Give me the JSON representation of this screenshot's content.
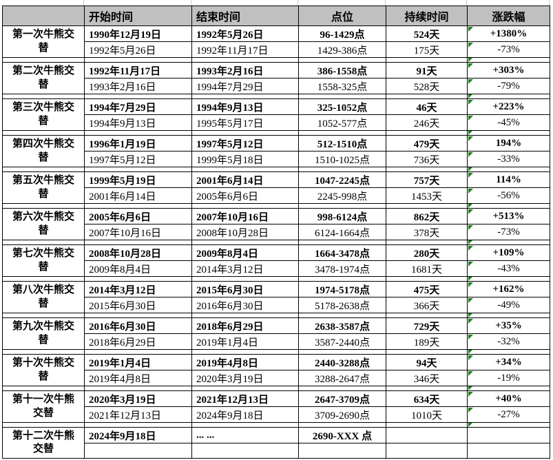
{
  "table": {
    "columns": [
      {
        "key": "label",
        "label": ""
      },
      {
        "key": "start",
        "label": "开始时间"
      },
      {
        "key": "end",
        "label": "结束时间"
      },
      {
        "key": "points",
        "label": "点位"
      },
      {
        "key": "duration",
        "label": "持续时间"
      },
      {
        "key": "change",
        "label": "涨跌幅"
      }
    ],
    "groups": [
      {
        "label": "第一次牛熊交替",
        "bull": {
          "start": "1990年12月19日",
          "end": "1992年5月26日",
          "points": "96-1429点",
          "duration": "524天",
          "change": "+1380%"
        },
        "bear": {
          "start": "1992年5月26日",
          "end": "1992年11月17日",
          "points": "1429-386点",
          "duration": "175天",
          "change": "-73%"
        }
      },
      {
        "label": "第二次牛熊交替",
        "bull": {
          "start": "1992年11月17日",
          "end": "1993年2月16日",
          "points": "386-1558点",
          "duration": "91天",
          "change": "+303%"
        },
        "bear": {
          "start": "1993年2月16日",
          "end": "1994年7月29日",
          "points": "1558-325点",
          "duration": "528天",
          "change": "-79%"
        }
      },
      {
        "label": "第三次牛熊交替",
        "bull": {
          "start": "1994年7月29日",
          "end": "1994年9月13日",
          "points": "325-1052点",
          "duration": "46天",
          "change": "+223%"
        },
        "bear": {
          "start": "1994年9月13日",
          "end": "1995年5月17日",
          "points": "1052-577点",
          "duration": "246天",
          "change": "-45%"
        }
      },
      {
        "label": "第四次牛熊交替",
        "bull": {
          "start": "1996年1月19日",
          "end": "1997年5月12日",
          "points": "512-1510点",
          "duration": "479天",
          "change": "194%"
        },
        "bear": {
          "start": "1997年5月12日",
          "end": "1999年5月18日",
          "points": "1510-1025点",
          "duration": "736天",
          "change": "-33%"
        }
      },
      {
        "label": "第五次牛熊交替",
        "bull": {
          "start": "1999年5月19日",
          "end": "2001年6月14日",
          "points": "1047-2245点",
          "duration": "757天",
          "change": "114%"
        },
        "bear": {
          "start": "2001年6月14日",
          "end": "2005年6月6日",
          "points": "2245-998点",
          "duration": "1453天",
          "change": "-56%"
        }
      },
      {
        "label": "第六次牛熊交替",
        "bull": {
          "start": "2005年6月6日",
          "end": "2007年10月16日",
          "points": "998-6124点",
          "duration": "862天",
          "change": "+513%"
        },
        "bear": {
          "start": "2007年10月16日",
          "end": "2008年10月28日",
          "points": "6124-1664点",
          "duration": "378天",
          "change": "-73%"
        }
      },
      {
        "label": "第七次牛熊交替",
        "bull": {
          "start": "2008年10月28日",
          "end": "2009年8月4日",
          "points": "1664-3478点",
          "duration": "280天",
          "change": "+109%"
        },
        "bear": {
          "start": "2009年8月4日",
          "end": "2014年3月12日",
          "points": "3478-1974点",
          "duration": "1681天",
          "change": "-43%"
        }
      },
      {
        "label": "第八次牛熊交替",
        "bull": {
          "start": "2014年3月12日",
          "end": "2015年6月30日",
          "points": "1974-5178点",
          "duration": "475天",
          "change": "+162%"
        },
        "bear": {
          "start": "2015年6月30日",
          "end": "2016年6月30日",
          "points": "5178-2638点",
          "duration": "366天",
          "change": "-49%"
        }
      },
      {
        "label": "第九次牛熊交替",
        "bull": {
          "start": "2016年6月30日",
          "end": "2018年6月29日",
          "points": "2638-3587点",
          "duration": "729天",
          "change": "+35%"
        },
        "bear": {
          "start": "2018年6月29日",
          "end": "2019年1月4日",
          "points": "3587-2440点",
          "duration": "189天",
          "change": "-32%"
        }
      },
      {
        "label": "第十次牛熊交替",
        "bull": {
          "start": "2019年1月4日",
          "end": "2019年4月8日",
          "points": "2440-3288点",
          "duration": "94天",
          "change": "+34%"
        },
        "bear": {
          "start": "2019年4月8日",
          "end": "2020年3月19日",
          "points": "3288-2647点",
          "duration": "346天",
          "change": "-19%"
        }
      },
      {
        "label": "第十一次牛熊交替",
        "bull": {
          "start": "2020年3月19日",
          "end": "2021年12月13日",
          "points": "2647-3709点",
          "duration": "634天",
          "change": "+40%"
        },
        "bear": {
          "start": "2021年12月13日",
          "end": "2024年9月18日",
          "points": "3709-2690点",
          "duration": "1010天",
          "change": "-27%"
        }
      },
      {
        "label": "第十二次牛熊交替",
        "bull": {
          "start": "2024年9月18日",
          "end": "... ...",
          "points": "2690-XXX 点",
          "duration": "",
          "change": ""
        },
        "bear": {
          "start": "",
          "end": "",
          "points": "",
          "duration": "",
          "change": ""
        }
      }
    ]
  },
  "colors": {
    "header_bg": "#c0c0c0",
    "border": "#000000",
    "indicator_green": "#1e7f1e",
    "gridline": "#c9c9c9"
  }
}
